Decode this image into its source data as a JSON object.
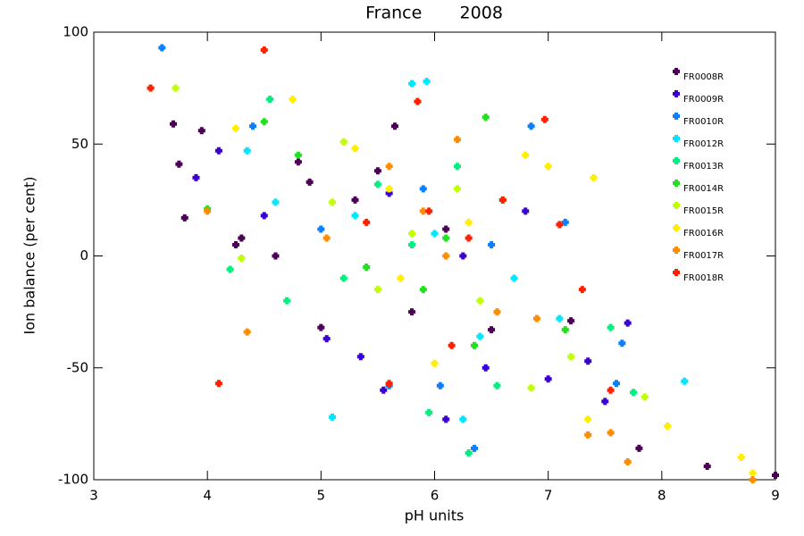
{
  "chart_data": {
    "type": "scatter",
    "title": "France       2008",
    "xlabel": "pH units",
    "ylabel": "Ion balance (per cent)",
    "xlim": [
      3,
      9
    ],
    "xticks": [
      3,
      4,
      5,
      6,
      7,
      8,
      9
    ],
    "ylim": [
      -100,
      100
    ],
    "yticks": [
      -100,
      -50,
      0,
      50,
      100
    ],
    "legend": "upper right",
    "series": [
      {
        "name": "FR0008R",
        "color": "#4b0055",
        "x": [
          3.7,
          3.75,
          3.8,
          3.95,
          4.25,
          4.3,
          4.6,
          4.9,
          5.0,
          5.3,
          5.5,
          5.65,
          5.8,
          6.1,
          6.5,
          7.2,
          7.8,
          8.4,
          9.0,
          4.8
        ],
        "values": [
          59,
          41,
          17,
          56,
          5,
          8,
          0,
          33,
          -32,
          25,
          38,
          58,
          -25,
          12,
          -33,
          -29,
          -86,
          -94,
          -98,
          42
        ]
      },
      {
        "name": "FR0009R",
        "color": "#3a00d0",
        "x": [
          3.9,
          4.1,
          4.5,
          5.05,
          5.35,
          5.55,
          6.1,
          6.25,
          6.45,
          7.0,
          7.35,
          7.5,
          7.7,
          5.6,
          6.8
        ],
        "values": [
          35,
          47,
          18,
          -37,
          -45,
          -60,
          -73,
          0,
          -50,
          -55,
          -47,
          -65,
          -30,
          28,
          20
        ]
      },
      {
        "name": "FR0010R",
        "color": "#0a80ff",
        "x": [
          3.6,
          4.4,
          5.0,
          5.6,
          5.9,
          6.05,
          6.35,
          6.85,
          7.15,
          7.6,
          7.65,
          6.5
        ],
        "values": [
          93,
          58,
          12,
          -58,
          30,
          -58,
          -86,
          58,
          15,
          -57,
          -39,
          5
        ]
      },
      {
        "name": "FR0012R",
        "color": "#00e6ff",
        "x": [
          4.35,
          4.6,
          5.1,
          5.8,
          5.93,
          6.25,
          6.4,
          7.1,
          8.2,
          5.3,
          6.0,
          6.7
        ],
        "values": [
          47,
          24,
          -72,
          77,
          78,
          -73,
          -36,
          -28,
          -56,
          18,
          10,
          -10
        ]
      },
      {
        "name": "FR0013R",
        "color": "#00f080",
        "x": [
          4.2,
          4.55,
          4.7,
          5.2,
          5.5,
          5.95,
          6.3,
          6.55,
          7.55,
          7.75,
          6.2,
          5.8
        ],
        "values": [
          -6,
          70,
          -20,
          -10,
          32,
          -70,
          -88,
          -58,
          -32,
          -61,
          40,
          5
        ]
      },
      {
        "name": "FR0014R",
        "color": "#20e020",
        "x": [
          4.0,
          4.5,
          4.8,
          5.4,
          6.45,
          6.35,
          7.15,
          6.1,
          5.9,
          6.6
        ],
        "values": [
          21,
          60,
          45,
          -5,
          62,
          -40,
          -33,
          8,
          -15,
          25
        ]
      },
      {
        "name": "FR0015R",
        "color": "#c0ff00",
        "x": [
          3.72,
          4.3,
          5.2,
          5.5,
          6.2,
          6.85,
          7.2,
          7.85,
          5.8,
          6.4,
          5.1
        ],
        "values": [
          75,
          -1,
          51,
          -15,
          30,
          -59,
          -45,
          -63,
          10,
          -20,
          24
        ]
      },
      {
        "name": "FR0016R",
        "color": "#ffee00",
        "x": [
          4.25,
          4.75,
          5.3,
          5.7,
          6.0,
          6.8,
          7.0,
          7.4,
          7.35,
          8.05,
          8.8,
          8.7,
          6.3,
          5.6
        ],
        "values": [
          57,
          70,
          48,
          -10,
          -48,
          45,
          40,
          35,
          -73,
          -76,
          -97,
          -90,
          15,
          30
        ]
      },
      {
        "name": "FR0017R",
        "color": "#ff8c00",
        "x": [
          4.0,
          4.35,
          5.05,
          5.6,
          6.2,
          6.55,
          6.9,
          7.35,
          7.55,
          7.7,
          8.8,
          5.9,
          6.1
        ],
        "values": [
          20,
          -34,
          8,
          40,
          52,
          -25,
          -28,
          -80,
          -79,
          -92,
          -100,
          20,
          0
        ]
      },
      {
        "name": "FR0018R",
        "color": "#ff2000",
        "x": [
          3.5,
          4.1,
          4.5,
          5.6,
          5.85,
          6.15,
          6.6,
          6.97,
          7.55,
          7.3,
          5.95,
          6.3,
          5.4,
          7.1
        ],
        "values": [
          75,
          -57,
          92,
          -57,
          69,
          -40,
          25,
          61,
          -60,
          -15,
          20,
          8,
          15,
          14
        ]
      }
    ]
  }
}
